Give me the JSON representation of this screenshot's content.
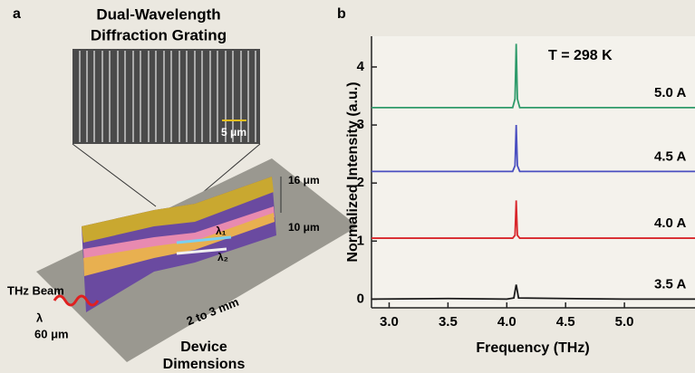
{
  "panel_a": {
    "label": "a",
    "title_line1": "Dual-Wavelength",
    "title_line2": "Diffraction Grating",
    "scale_bar": "5 μm",
    "height_top": "16 μm",
    "height_mid": "10 μm",
    "lambda1": "λ₁",
    "lambda2": "λ₂",
    "beam": "THz Beam",
    "lambda": "λ",
    "width": "60 μm",
    "length": "2 to 3 mm",
    "caption_line1": "Device",
    "caption_line2": "Dimensions"
  },
  "chart_data": {
    "type": "line",
    "panel_label": "b",
    "title": "T = 298 K",
    "xlabel": "Frequency (THz)",
    "ylabel": "Normalized Intensity (a.u.)",
    "xlim": [
      2.85,
      5.6
    ],
    "ylim": [
      -0.15,
      4.53
    ],
    "xticks": [
      {
        "value": 3,
        "label": "3.0"
      },
      3.5,
      {
        "value": 4,
        "label": "4.0"
      },
      4.5,
      {
        "value": 5,
        "label": "5.0"
      }
    ],
    "yticks": [
      0,
      1,
      2,
      3,
      4
    ],
    "series": [
      {
        "name": "3.5 A",
        "color": "#1a1a1a",
        "x": [
          2.85,
          3.5,
          4.0,
          4.06,
          4.08,
          4.1,
          4.5,
          5.0,
          5.6
        ],
        "values": [
          0,
          0.01,
          0,
          0.02,
          0.25,
          0.02,
          0.01,
          0,
          0
        ]
      },
      {
        "name": "4.0 A",
        "color": "#d8262b",
        "x": [
          2.85,
          4.05,
          4.07,
          4.08,
          4.09,
          4.11,
          5.6
        ],
        "values": [
          1.05,
          1.05,
          1.1,
          1.7,
          1.1,
          1.05,
          1.05
        ]
      },
      {
        "name": "4.5 A",
        "color": "#4a4fc0",
        "x": [
          2.85,
          4.05,
          4.07,
          4.08,
          4.09,
          4.11,
          5.6
        ],
        "values": [
          2.2,
          2.2,
          2.3,
          3.0,
          2.3,
          2.2,
          2.2
        ]
      },
      {
        "name": "5.0 A",
        "color": "#2e9a6a",
        "x": [
          2.85,
          4.05,
          4.07,
          4.08,
          4.09,
          4.11,
          5.6
        ],
        "values": [
          3.3,
          3.3,
          3.45,
          4.4,
          3.45,
          3.3,
          3.3
        ]
      }
    ]
  }
}
